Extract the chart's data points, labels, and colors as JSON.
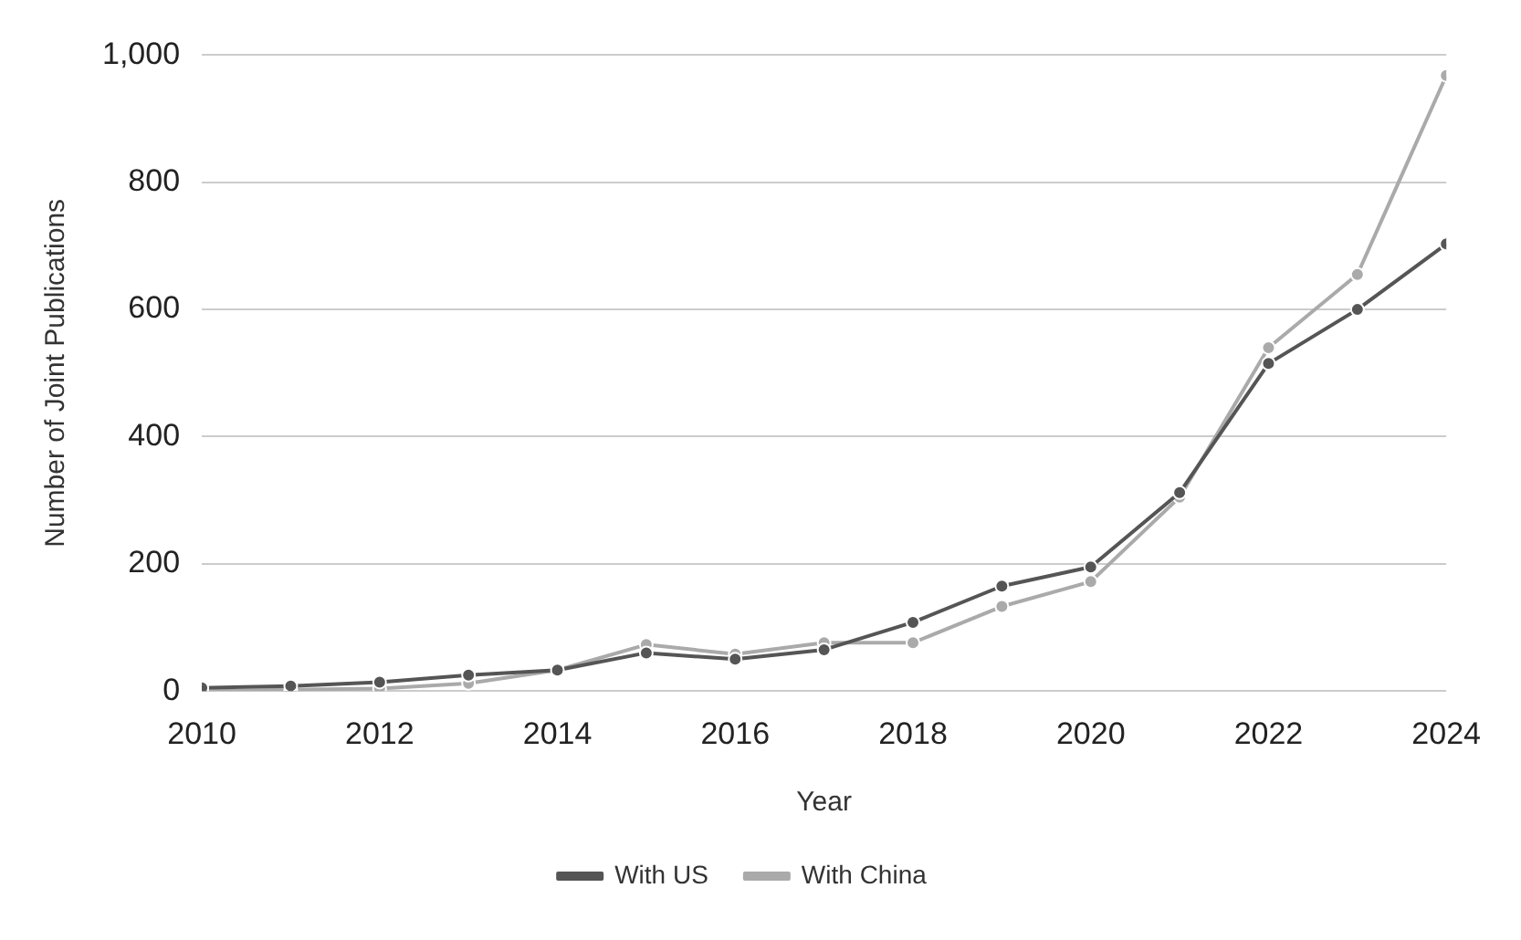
{
  "chart_data": {
    "type": "line",
    "xlabel": "Year",
    "ylabel": "Number of Joint Publications",
    "x": [
      2010,
      2011,
      2012,
      2013,
      2014,
      2015,
      2016,
      2017,
      2018,
      2019,
      2020,
      2021,
      2022,
      2023,
      2024
    ],
    "series": [
      {
        "name": "With US",
        "color": "#555555",
        "values": [
          5,
          8,
          14,
          25,
          33,
          60,
          50,
          65,
          108,
          165,
          195,
          312,
          515,
          600,
          703
        ]
      },
      {
        "name": "With China",
        "color": "#aaaaaa",
        "values": [
          0,
          2,
          4,
          12,
          33,
          73,
          58,
          76,
          76,
          133,
          172,
          305,
          540,
          655,
          968
        ]
      }
    ],
    "xlim": [
      2010,
      2024
    ],
    "xticks": [
      2010,
      2012,
      2014,
      2016,
      2018,
      2020,
      2022,
      2024
    ],
    "ylim": [
      0,
      1000
    ],
    "yticks": [
      0,
      200,
      400,
      600,
      800,
      {
        "value": 1000,
        "label": "1,000"
      }
    ],
    "grid": "y",
    "legend": "bottom",
    "marker": "circle",
    "line_style": "solid"
  }
}
